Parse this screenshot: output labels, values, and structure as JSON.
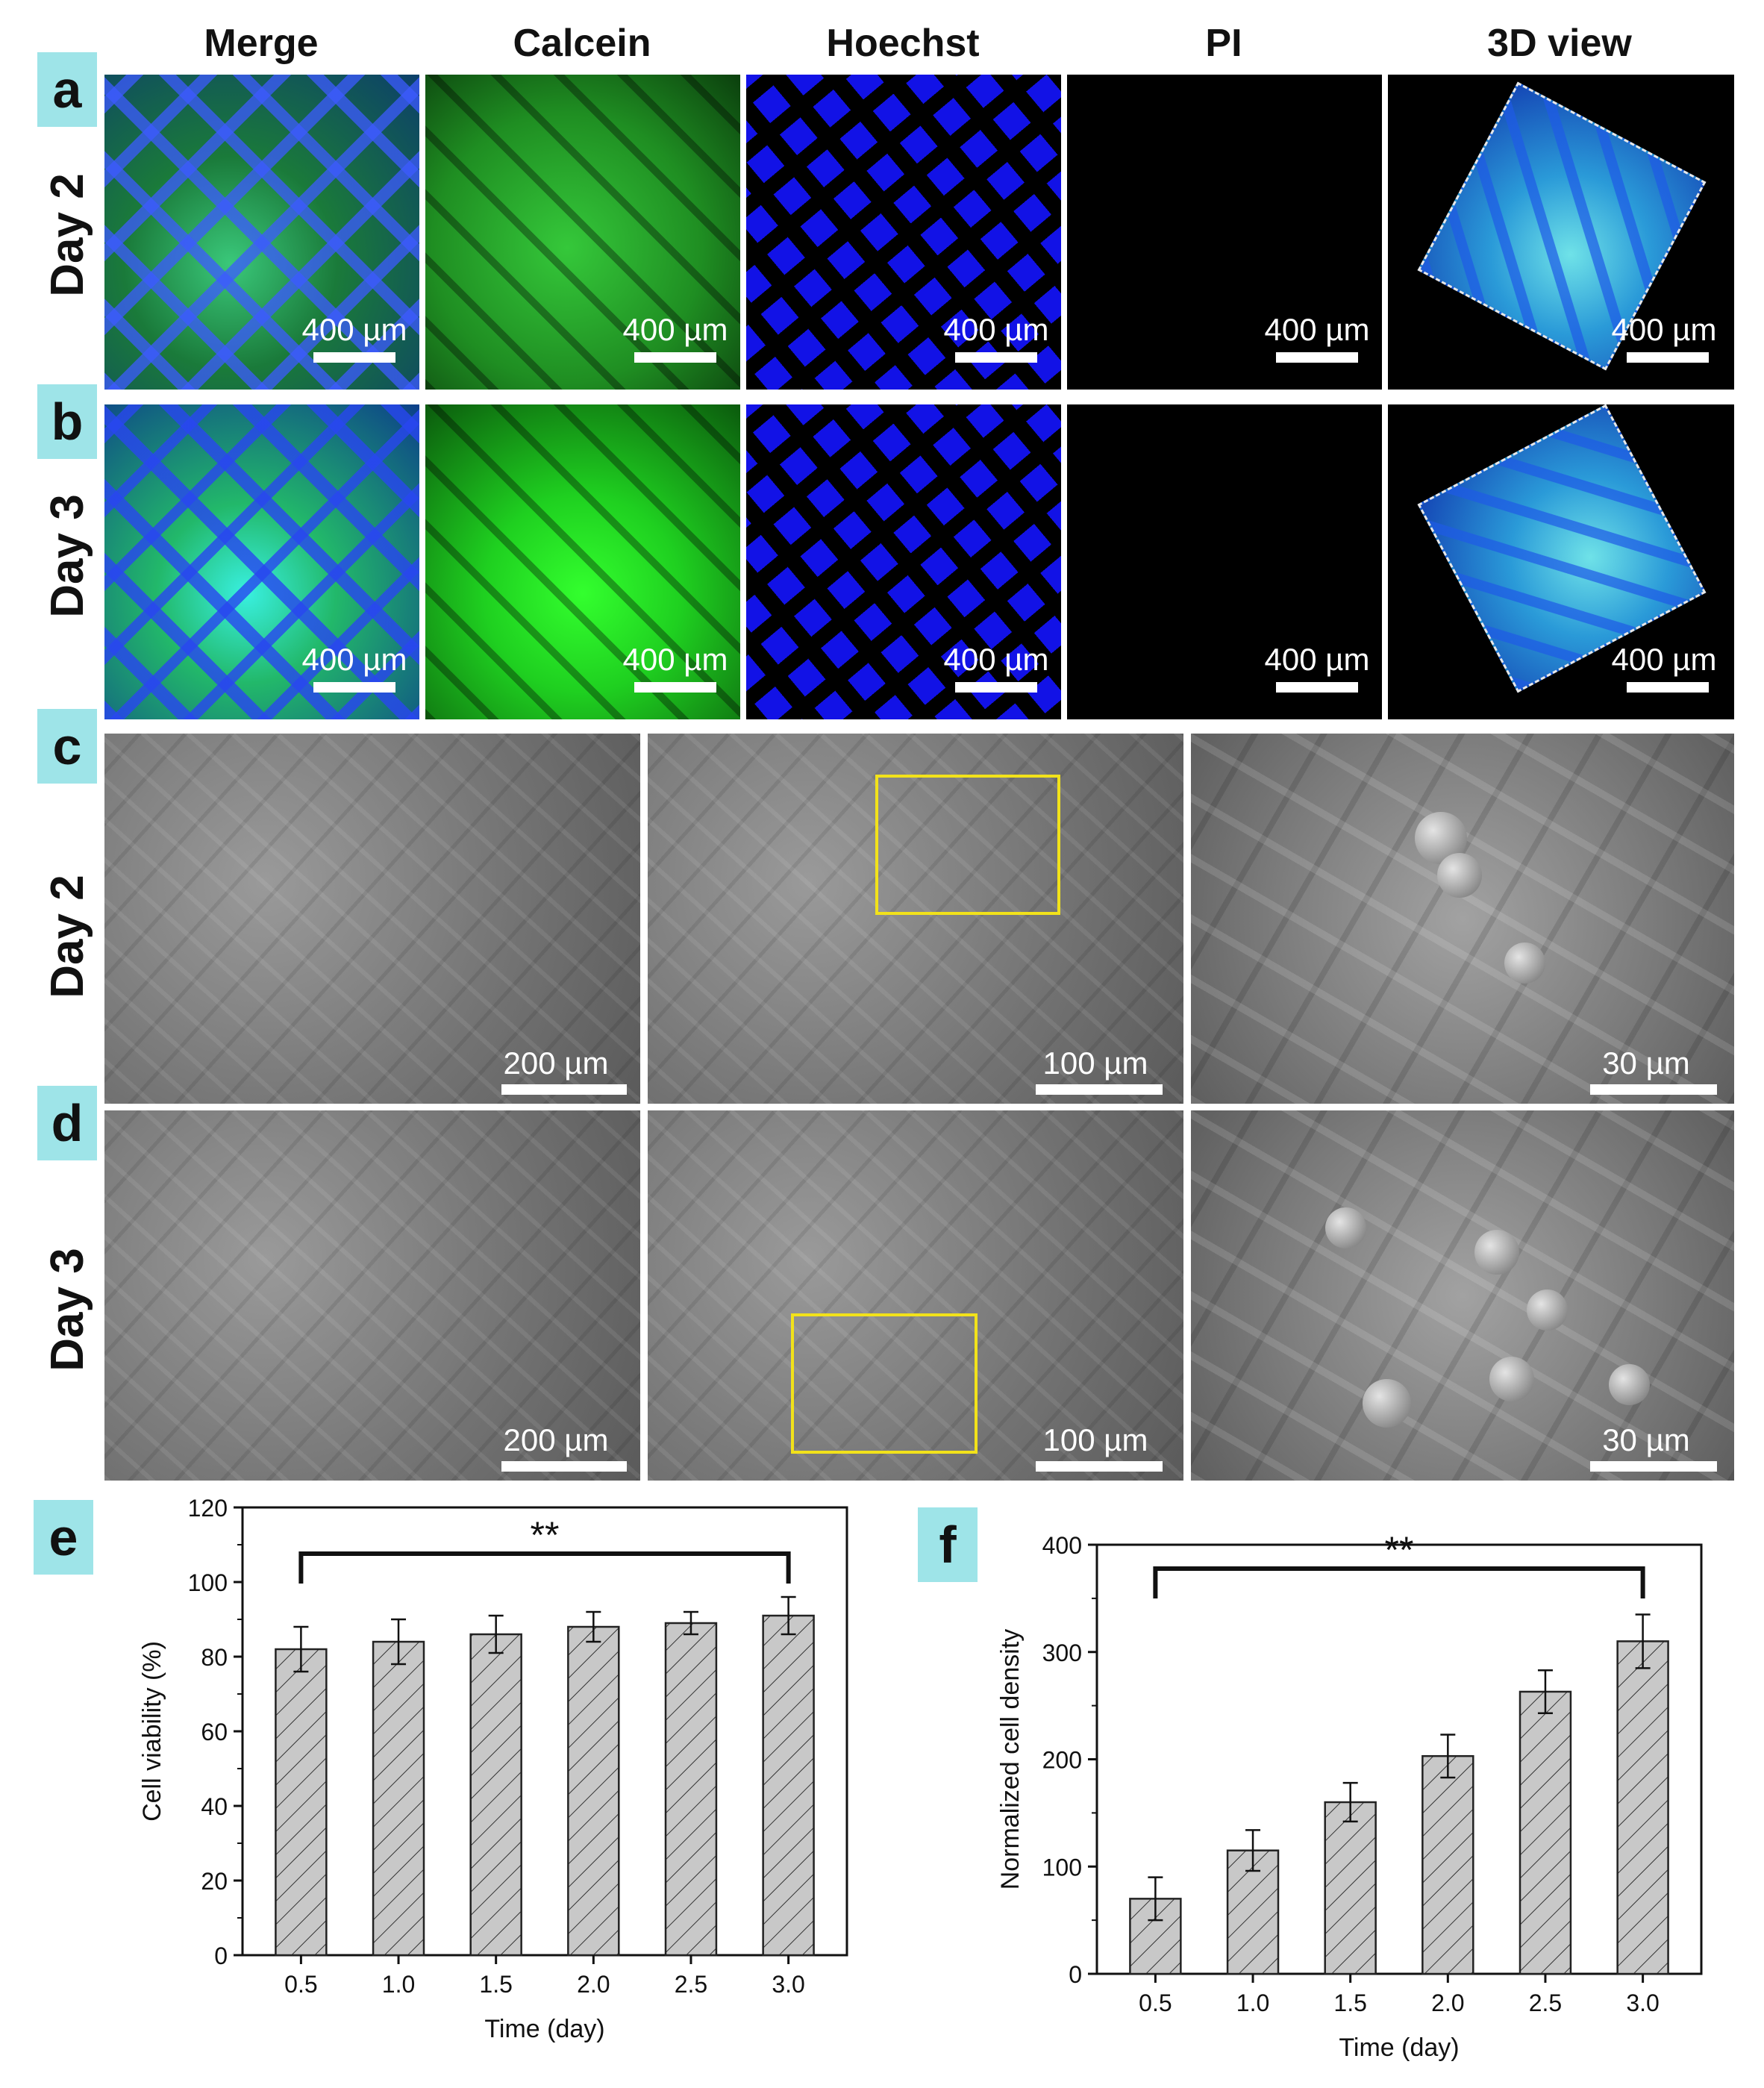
{
  "columns": [
    "Merge",
    "Calcein",
    "Hoechst",
    "PI",
    "3D view"
  ],
  "panels": {
    "a": "a",
    "b": "b",
    "c": "c",
    "d": "d",
    "e": "e",
    "f": "f"
  },
  "row_labels": {
    "a": "Day 2",
    "b": "Day 3",
    "c": "Day 2",
    "d": "Day 3"
  },
  "scales": {
    "fluor": "400 µm",
    "sem_low": "200 µm",
    "sem_mid": "100 µm",
    "sem_high": "30 µm"
  },
  "colors": {
    "panel_tag": "#9ee4e8",
    "bar_fill": "#c8c8c8",
    "highlight_box": "#f2e21a"
  },
  "chart_data": [
    {
      "type": "bar",
      "panel": "e",
      "categories": [
        "0.5",
        "1.0",
        "1.5",
        "2.0",
        "2.5",
        "3.0"
      ],
      "values": [
        82,
        84,
        86,
        88,
        89,
        91
      ],
      "errors": [
        6,
        6,
        5,
        4,
        3,
        5
      ],
      "xlabel": "Time (day)",
      "ylabel": "Cell viability (%)",
      "ylim": [
        0,
        120
      ],
      "yticks": [
        "0",
        "20",
        "40",
        "60",
        "80",
        "100",
        "120"
      ],
      "significance": "**"
    },
    {
      "type": "bar",
      "panel": "f",
      "categories": [
        "0.5",
        "1.0",
        "1.5",
        "2.0",
        "2.5",
        "3.0"
      ],
      "values": [
        70,
        115,
        160,
        203,
        263,
        310
      ],
      "errors": [
        20,
        19,
        18,
        20,
        20,
        25
      ],
      "xlabel": "Time (day)",
      "ylabel": "Normalized cell density",
      "ylim": [
        0,
        400
      ],
      "yticks": [
        "0",
        "100",
        "200",
        "300",
        "400"
      ],
      "significance": "**"
    }
  ]
}
